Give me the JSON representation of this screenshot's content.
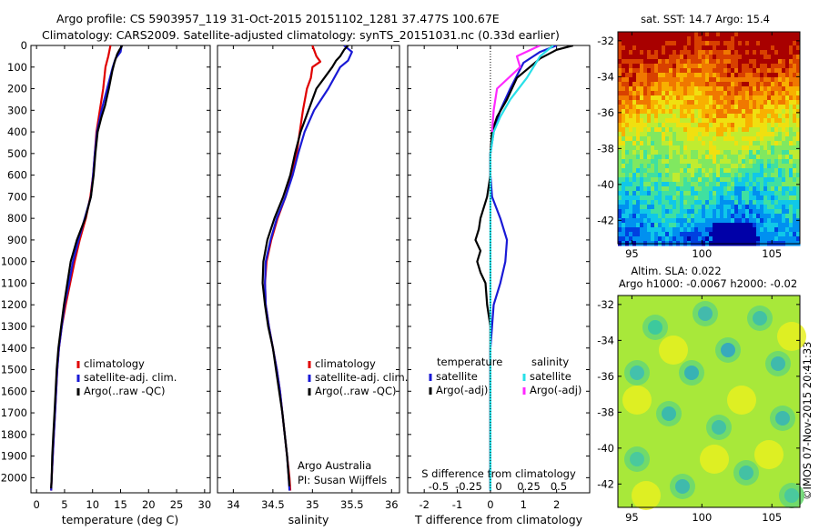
{
  "header": {
    "line1": "Argo profile: CS 5903957_119 31-Oct-2015 20151102_1281 37.477S 100.67E",
    "line2": "Climatology: CARS2009. Satellite-adjusted climatology: synTS_20151031.nc (0.33d earlier)"
  },
  "credits": {
    "org": "Argo Australia",
    "pi": "PI: Susan Wijffels",
    "stamp": "©IMOS 07-Nov-2015 20:41:33"
  },
  "colors": {
    "climatology": "#e00000",
    "satellite": "#1a1ad6",
    "argo": "#000000",
    "cyan": "#28e0e8",
    "magenta": "#ff28ff"
  },
  "chart_data": [
    {
      "type": "line",
      "xlabel": "temperature (deg C)",
      "ylabel": "",
      "xlim": [
        -1,
        31
      ],
      "ylim": [
        2070,
        0
      ],
      "xticks": [
        0,
        5,
        10,
        15,
        20,
        25,
        30
      ],
      "yticks": [
        0,
        100,
        200,
        300,
        400,
        500,
        600,
        700,
        800,
        900,
        1000,
        1100,
        1200,
        1300,
        1400,
        1500,
        1600,
        1700,
        1800,
        1900,
        2000
      ],
      "legend": [
        "climatology",
        "satellite-adj. clim.",
        "Argo(..raw -QC)"
      ],
      "series": [
        {
          "name": "climatology",
          "color": "#e00000",
          "points": [
            [
              13.2,
              0
            ],
            [
              12.8,
              50
            ],
            [
              12.3,
              100
            ],
            [
              11.9,
              200
            ],
            [
              11.3,
              300
            ],
            [
              10.7,
              400
            ],
            [
              10.4,
              500
            ],
            [
              10.1,
              600
            ],
            [
              9.6,
              700
            ],
            [
              8.8,
              800
            ],
            [
              7.7,
              900
            ],
            [
              6.8,
              1000
            ],
            [
              6.0,
              1100
            ],
            [
              5.2,
              1200
            ],
            [
              4.5,
              1300
            ],
            [
              4.0,
              1400
            ],
            [
              3.7,
              1500
            ],
            [
              3.5,
              1600
            ],
            [
              3.3,
              1700
            ],
            [
              3.1,
              1800
            ],
            [
              2.9,
              1900
            ],
            [
              2.7,
              2000
            ],
            [
              2.6,
              2060
            ]
          ]
        },
        {
          "name": "satellite-adj. clim.",
          "color": "#1a1ad6",
          "points": [
            [
              15.2,
              0
            ],
            [
              15.0,
              30
            ],
            [
              14.1,
              60
            ],
            [
              13.6,
              100
            ],
            [
              12.6,
              200
            ],
            [
              11.6,
              300
            ],
            [
              10.8,
              400
            ],
            [
              10.4,
              500
            ],
            [
              10.1,
              600
            ],
            [
              9.7,
              700
            ],
            [
              8.6,
              800
            ],
            [
              7.5,
              900
            ],
            [
              6.5,
              1000
            ],
            [
              5.8,
              1100
            ],
            [
              5.0,
              1200
            ],
            [
              4.5,
              1300
            ],
            [
              4.0,
              1400
            ],
            [
              3.7,
              1500
            ],
            [
              3.5,
              1600
            ],
            [
              3.3,
              1700
            ],
            [
              3.1,
              1800
            ],
            [
              2.9,
              1900
            ],
            [
              2.7,
              2000
            ],
            [
              2.6,
              2060
            ]
          ]
        },
        {
          "name": "Argo(..raw -QC)",
          "color": "#000000",
          "points": [
            [
              15.3,
              0
            ],
            [
              14.8,
              20
            ],
            [
              14.4,
              40
            ],
            [
              13.9,
              80
            ],
            [
              13.5,
              120
            ],
            [
              12.9,
              200
            ],
            [
              12.2,
              280
            ],
            [
              11.6,
              330
            ],
            [
              10.9,
              400
            ],
            [
              10.5,
              500
            ],
            [
              10.2,
              600
            ],
            [
              9.7,
              700
            ],
            [
              8.7,
              800
            ],
            [
              7.2,
              900
            ],
            [
              6.1,
              1000
            ],
            [
              5.5,
              1100
            ],
            [
              4.9,
              1200
            ],
            [
              4.4,
              1300
            ],
            [
              3.9,
              1400
            ],
            [
              3.6,
              1500
            ],
            [
              3.4,
              1600
            ],
            [
              3.2,
              1700
            ],
            [
              3.0,
              1800
            ],
            [
              2.8,
              1900
            ],
            [
              2.7,
              2000
            ],
            [
              2.6,
              2050
            ]
          ]
        }
      ]
    },
    {
      "type": "line",
      "xlabel": "salinity",
      "ylabel": "",
      "xlim": [
        33.8,
        36.1
      ],
      "ylim": [
        2070,
        0
      ],
      "xticks": [
        34,
        34.5,
        35,
        35.5,
        36
      ],
      "legend": [
        "climatology",
        "satellite-adj. clim.",
        "Argo(..raw -QC)"
      ],
      "series": [
        {
          "name": "climatology",
          "color": "#e00000",
          "points": [
            [
              35.0,
              0
            ],
            [
              35.05,
              50
            ],
            [
              35.1,
              75
            ],
            [
              35.0,
              100
            ],
            [
              34.98,
              150
            ],
            [
              34.93,
              200
            ],
            [
              34.88,
              300
            ],
            [
              34.84,
              400
            ],
            [
              34.8,
              500
            ],
            [
              34.74,
              600
            ],
            [
              34.66,
              700
            ],
            [
              34.56,
              800
            ],
            [
              34.48,
              900
            ],
            [
              34.42,
              1000
            ],
            [
              34.4,
              1100
            ],
            [
              34.41,
              1200
            ],
            [
              34.45,
              1300
            ],
            [
              34.5,
              1400
            ],
            [
              34.55,
              1500
            ],
            [
              34.59,
              1600
            ],
            [
              34.62,
              1700
            ],
            [
              34.65,
              1800
            ],
            [
              34.68,
              1900
            ],
            [
              34.71,
              2000
            ],
            [
              34.72,
              2060
            ]
          ]
        },
        {
          "name": "satellite-adj. clim.",
          "color": "#1a1ad6",
          "points": [
            [
              35.4,
              0
            ],
            [
              35.5,
              30
            ],
            [
              35.45,
              70
            ],
            [
              35.35,
              100
            ],
            [
              35.2,
              200
            ],
            [
              35.02,
              300
            ],
            [
              34.9,
              400
            ],
            [
              34.82,
              500
            ],
            [
              34.75,
              600
            ],
            [
              34.66,
              700
            ],
            [
              34.55,
              800
            ],
            [
              34.47,
              900
            ],
            [
              34.41,
              1000
            ],
            [
              34.4,
              1100
            ],
            [
              34.41,
              1200
            ],
            [
              34.45,
              1300
            ],
            [
              34.5,
              1400
            ],
            [
              34.55,
              1500
            ],
            [
              34.59,
              1600
            ],
            [
              34.62,
              1700
            ],
            [
              34.65,
              1800
            ],
            [
              34.68,
              1900
            ],
            [
              34.7,
              2000
            ],
            [
              34.71,
              2060
            ]
          ]
        },
        {
          "name": "Argo(..raw -QC)",
          "color": "#000000",
          "points": [
            [
              35.45,
              0
            ],
            [
              35.4,
              20
            ],
            [
              35.35,
              50
            ],
            [
              35.3,
              70
            ],
            [
              35.25,
              100
            ],
            [
              35.15,
              150
            ],
            [
              35.05,
              200
            ],
            [
              34.95,
              300
            ],
            [
              34.85,
              400
            ],
            [
              34.78,
              500
            ],
            [
              34.72,
              600
            ],
            [
              34.63,
              700
            ],
            [
              34.52,
              800
            ],
            [
              34.43,
              900
            ],
            [
              34.38,
              1000
            ],
            [
              34.37,
              1100
            ],
            [
              34.4,
              1200
            ],
            [
              34.44,
              1300
            ],
            [
              34.5,
              1400
            ],
            [
              34.54,
              1500
            ],
            [
              34.58,
              1600
            ],
            [
              34.62,
              1700
            ],
            [
              34.65,
              1800
            ],
            [
              34.68,
              1900
            ],
            [
              34.7,
              2000
            ],
            [
              34.71,
              2040
            ]
          ]
        }
      ]
    },
    {
      "type": "line",
      "xlabel": "T difference from climatology",
      "secondary_xlabel": "S difference from climatology",
      "xlim": [
        -2.5,
        3.0
      ],
      "ylim": [
        2070,
        0
      ],
      "xticks": [
        -2,
        -1,
        0,
        1,
        2
      ],
      "secondary_xticks": [
        "-0.5",
        "-0.25",
        "0",
        "0.25",
        "0.5"
      ],
      "legend_groups": [
        {
          "title": "temperature",
          "items": [
            {
              "name": "satellite",
              "color": "#1a1ad6"
            },
            {
              "name": "Argo(-adj)",
              "color": "#000000"
            }
          ]
        },
        {
          "title": "salinity",
          "items": [
            {
              "name": "satellite",
              "color": "#28e0e8"
            },
            {
              "name": "Argo(-adj)",
              "color": "#ff28ff"
            }
          ]
        }
      ],
      "series": [
        {
          "name": "temperature satellite",
          "color": "#1a1ad6",
          "points": [
            [
              2.0,
              0
            ],
            [
              1.5,
              30
            ],
            [
              1.0,
              80
            ],
            [
              0.6,
              200
            ],
            [
              0.3,
              300
            ],
            [
              0.1,
              400
            ],
            [
              0.0,
              500
            ],
            [
              0.0,
              600
            ],
            [
              0.05,
              700
            ],
            [
              0.3,
              800
            ],
            [
              0.5,
              900
            ],
            [
              0.45,
              1000
            ],
            [
              0.3,
              1100
            ],
            [
              0.1,
              1200
            ],
            [
              0.05,
              1300
            ],
            [
              0.0,
              1400
            ],
            [
              0.0,
              1600
            ],
            [
              0.0,
              1800
            ],
            [
              0.0,
              2000
            ],
            [
              0.0,
              2060
            ]
          ]
        },
        {
          "name": "temperature Argo(-adj)",
          "color": "#000000",
          "points": [
            [
              2.5,
              0
            ],
            [
              2.0,
              20
            ],
            [
              1.5,
              60
            ],
            [
              0.8,
              150
            ],
            [
              0.5,
              250
            ],
            [
              0.2,
              330
            ],
            [
              0.05,
              400
            ],
            [
              0.0,
              500
            ],
            [
              0.0,
              600
            ],
            [
              -0.1,
              700
            ],
            [
              -0.3,
              800
            ],
            [
              -0.35,
              850
            ],
            [
              -0.45,
              900
            ],
            [
              -0.3,
              950
            ],
            [
              -0.4,
              1000
            ],
            [
              -0.3,
              1050
            ],
            [
              -0.15,
              1100
            ],
            [
              -0.1,
              1200
            ],
            [
              0.0,
              1300
            ],
            [
              0.0,
              1500
            ],
            [
              0.0,
              1800
            ],
            [
              0.0,
              2050
            ]
          ]
        },
        {
          "name": "salinity satellite",
          "color": "#28e0e8",
          "points": [
            [
              1.9,
              0
            ],
            [
              1.5,
              50
            ],
            [
              1.1,
              150
            ],
            [
              0.6,
              250
            ],
            [
              0.3,
              330
            ],
            [
              0.1,
              400
            ],
            [
              0.0,
              500
            ],
            [
              0.0,
              700
            ],
            [
              0.0,
              1000
            ],
            [
              0.0,
              1500
            ],
            [
              0.0,
              2000
            ],
            [
              0.0,
              2060
            ]
          ]
        },
        {
          "name": "salinity Argo(-adj)",
          "color": "#ff28ff",
          "points": [
            [
              1.5,
              0
            ],
            [
              0.8,
              50
            ],
            [
              0.9,
              100
            ],
            [
              0.2,
              200
            ],
            [
              0.1,
              300
            ],
            [
              0.05,
              400
            ]
          ]
        }
      ]
    },
    {
      "type": "heatmap",
      "title": "sat. SST: 14.7 Argo: 15.4",
      "xlim": [
        94,
        107
      ],
      "ylim": [
        -43.3,
        -31.5
      ],
      "xticks": [
        95,
        100,
        105
      ],
      "yticks": [
        -32,
        -34,
        -36,
        -38,
        -40,
        -42
      ]
    },
    {
      "type": "heatmap",
      "title_lines": [
        "Altim. SLA: 0.022",
        "Argo h1000: -0.0067 h2000: -0.02"
      ],
      "xlim": [
        94,
        107
      ],
      "ylim": [
        -43.3,
        -31.5
      ],
      "xticks": [
        95,
        100,
        105
      ],
      "yticks": [
        -32,
        -34,
        -36,
        -38,
        -40,
        -42
      ]
    }
  ]
}
